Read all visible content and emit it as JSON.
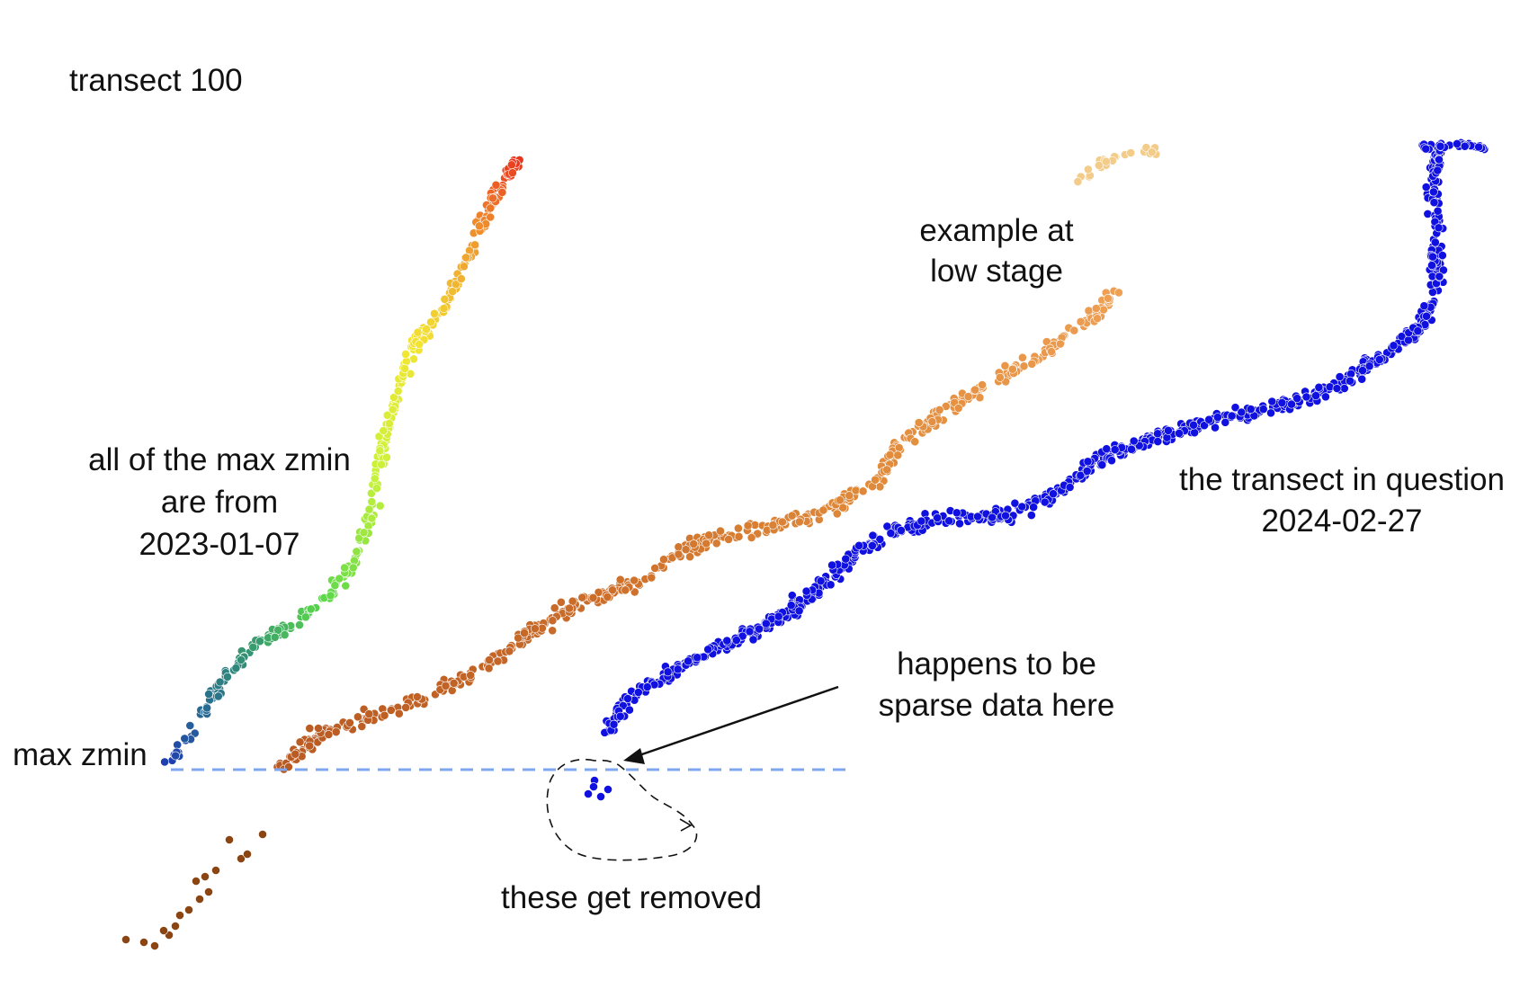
{
  "chart_data": {
    "type": "scatter",
    "title": "transect 100",
    "colors": {
      "survey_2023_low": "#1f3fb0",
      "survey_2023_mid": "#5cd84a",
      "survey_2023_high": "#e8351e",
      "low_stage_bottom": "#b85a22",
      "low_stage_middle": "#e08a3a",
      "low_stage_top": "#f3cc8a",
      "outliers_bottom_left": "#8b4513",
      "transect_2024": "#1010e0",
      "reference_line": "#7fa7ef",
      "annotation": "#111111"
    },
    "max_zmin_line": {
      "label": "max zmin"
    },
    "annotations": {
      "title": "transect 100",
      "all_max_zmin": [
        "all of the max zmin",
        "are from",
        "2023-01-07"
      ],
      "low_stage": [
        "example at",
        "low stage"
      ],
      "transect_question": [
        "the transect in question",
        "2024-02-27"
      ],
      "sparse": [
        "happens to be",
        "sparse data here"
      ],
      "removed": "these get removed"
    }
  }
}
